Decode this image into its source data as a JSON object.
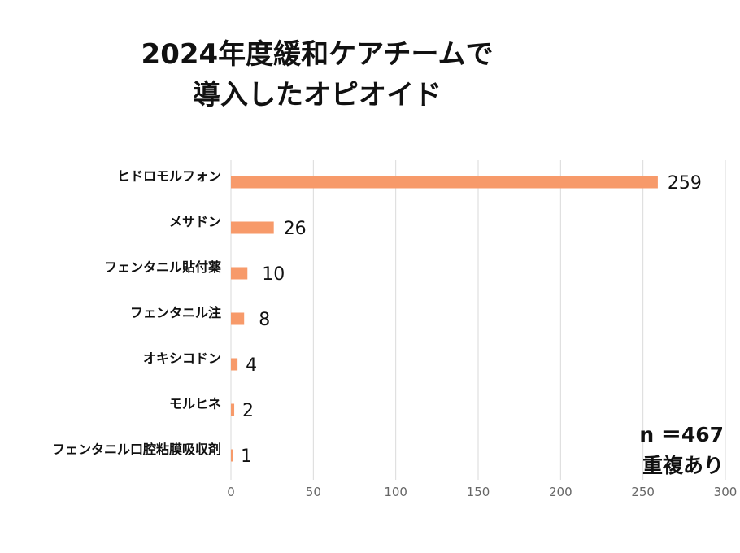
{
  "colors": {
    "bar": "#F79A6A",
    "grid": "#DADADA",
    "text": "#111111",
    "tick": "#666666"
  },
  "chart_data": {
    "type": "bar",
    "orientation": "horizontal",
    "title_lines": [
      "2024年度緩和ケアチームで",
      "導入したオピオイド"
    ],
    "categories": [
      "ヒドロモルフォン",
      "メサドン",
      "フェンタニル貼付薬",
      "フェンタニル注",
      "オキシコドン",
      "モルヒネ",
      "フェンタニル口腔粘膜吸収剤"
    ],
    "values": [
      259,
      26,
      10,
      8,
      4,
      2,
      1
    ],
    "data_labels": [
      "259",
      "26",
      "10",
      "8",
      "4",
      "2",
      "1"
    ],
    "xlim": [
      0,
      300
    ],
    "xticks": [
      0,
      50,
      100,
      150,
      200,
      250,
      300
    ],
    "xtick_labels": [
      "0",
      "50",
      "100",
      "150",
      "200",
      "250",
      "300"
    ],
    "grid": true,
    "annotation_lines": [
      "n ＝467",
      "重複あり"
    ]
  }
}
